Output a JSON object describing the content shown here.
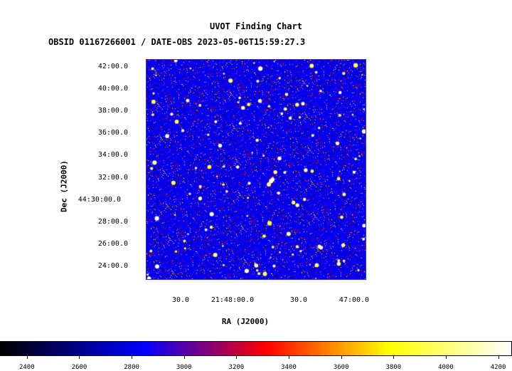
{
  "header": {
    "title": "UVOT Finding Chart",
    "subtitle": "OBSID 01167266001 / DATE-OBS 2023-05-06T15:59:27.3"
  },
  "chart_data": {
    "type": "heatmap",
    "title": "UVOT Finding Chart",
    "subtitle": "OBSID 01167266001 / DATE-OBS 2023-05-06T15:59:27.3",
    "xlabel": "RA (J2000)",
    "ylabel": "Dec (J2000)",
    "x_ticks": [
      "30.0",
      "21:48:00.0",
      "30.0",
      "47:00.0"
    ],
    "y_ticks": [
      "42:00.0",
      "40:00.0",
      "38:00.0",
      "36:00.0",
      "34:00.0",
      "32:00.0",
      "44:30:00.0",
      "28:00.0",
      "26:00.0",
      "24:00.0"
    ],
    "colorbar": {
      "ticks": [
        "2400",
        "2600",
        "2800",
        "3000",
        "3200",
        "3400",
        "3600",
        "3800",
        "4000",
        "4200"
      ],
      "range": [
        2300,
        4250
      ],
      "colormap": [
        "#000000",
        "#0000ff",
        "#ff0000",
        "#ffff00",
        "#ffffff"
      ]
    },
    "image_colors": {
      "background": "#0000cc",
      "frame": "#2a2aff"
    }
  }
}
